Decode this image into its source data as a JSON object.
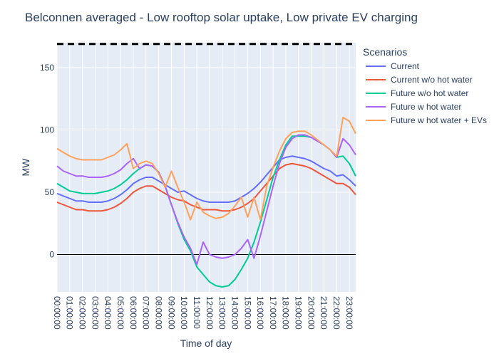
{
  "chart_data": {
    "type": "line",
    "title": "Belconnen averaged - Low rooftop solar uptake, Low private EV charging",
    "xlabel": "Time of day",
    "ylabel": "MW",
    "xlim": [
      0,
      23.5
    ],
    "ylim": [
      -30,
      170
    ],
    "x_ticks": [
      "00:00:00",
      "01:00:00",
      "02:00:00",
      "03:00:00",
      "04:00:00",
      "05:00:00",
      "06:00:00",
      "07:00:00",
      "08:00:00",
      "09:00:00",
      "10:00:00",
      "11:00:00",
      "12:00:00",
      "13:00:00",
      "14:00:00",
      "15:00:00",
      "16:00:00",
      "17:00:00",
      "18:00:00",
      "19:00:00",
      "20:00:00",
      "21:00:00",
      "22:00:00",
      "23:00:00"
    ],
    "y_ticks": [
      0,
      50,
      100,
      150
    ],
    "capacity_line": {
      "value": 169,
      "style": "dashed",
      "color": "#000000"
    },
    "zero_line": true,
    "legend": {
      "title": "Scenarios",
      "placement": "right"
    },
    "x": [
      0,
      0.5,
      1,
      1.5,
      2,
      2.5,
      3,
      3.5,
      4,
      4.5,
      5,
      5.5,
      6,
      6.5,
      7,
      7.5,
      8,
      8.5,
      9,
      9.5,
      10,
      10.5,
      11,
      11.5,
      12,
      12.5,
      13,
      13.5,
      14,
      14.5,
      15,
      15.5,
      16,
      16.5,
      17,
      17.5,
      18,
      18.5,
      19,
      19.5,
      20,
      20.5,
      21,
      21.5,
      22,
      22.5,
      23,
      23.5
    ],
    "series": [
      {
        "name": "Current",
        "color": "#636efa",
        "values": [
          49,
          47,
          45,
          43,
          43,
          42,
          42,
          42,
          43,
          45,
          48,
          52,
          57,
          60,
          62,
          62,
          59,
          56,
          53,
          50,
          51,
          48,
          45,
          43,
          42,
          42,
          42,
          42,
          43,
          46,
          49,
          53,
          58,
          64,
          70,
          76,
          78,
          79,
          78,
          77,
          75,
          72,
          69,
          67,
          63,
          64,
          60,
          55
        ]
      },
      {
        "name": "Current w/o hot water",
        "color": "#ef553b",
        "values": [
          42,
          40,
          38,
          36,
          36,
          35,
          35,
          35,
          36,
          38,
          41,
          45,
          50,
          53,
          55,
          55,
          52,
          49,
          46,
          44,
          43,
          40,
          38,
          36,
          36,
          36,
          35,
          35,
          36,
          38,
          41,
          45,
          51,
          57,
          63,
          69,
          72,
          73,
          72,
          71,
          69,
          66,
          63,
          60,
          57,
          57,
          54,
          48
        ]
      },
      {
        "name": "Future w/o hot water",
        "color": "#00cc96",
        "values": [
          57,
          54,
          51,
          50,
          49,
          49,
          49,
          50,
          51,
          53,
          56,
          60,
          65,
          69,
          72,
          71,
          66,
          55,
          40,
          25,
          12,
          3,
          -10,
          -16,
          -22,
          -25,
          -26,
          -25,
          -20,
          -12,
          -3,
          10,
          26,
          44,
          62,
          76,
          88,
          95,
          95,
          95,
          94,
          91,
          88,
          84,
          78,
          79,
          73,
          63
        ]
      },
      {
        "name": "Future w hot water",
        "color": "#ab63fa",
        "values": [
          71,
          67,
          65,
          63,
          63,
          62,
          62,
          62,
          63,
          65,
          68,
          73,
          77,
          69,
          72,
          71,
          66,
          55,
          40,
          26,
          14,
          5,
          -8,
          10,
          0,
          -2,
          -3,
          -2,
          0,
          5,
          12,
          -3,
          15,
          35,
          55,
          73,
          86,
          93,
          96,
          96,
          94,
          91,
          88,
          84,
          78,
          93,
          88,
          80
        ]
      },
      {
        "name": "Future w hot water + EVs",
        "color": "#ffa15a",
        "values": [
          85,
          82,
          79,
          77,
          76,
          76,
          76,
          76,
          78,
          80,
          84,
          89,
          69,
          73,
          75,
          73,
          65,
          54,
          67,
          54,
          42,
          28,
          42,
          34,
          31,
          29,
          30,
          33,
          39,
          46,
          30,
          46,
          28,
          55,
          70,
          83,
          93,
          98,
          99,
          99,
          96,
          92,
          88,
          84,
          79,
          110,
          107,
          97
        ]
      }
    ]
  }
}
